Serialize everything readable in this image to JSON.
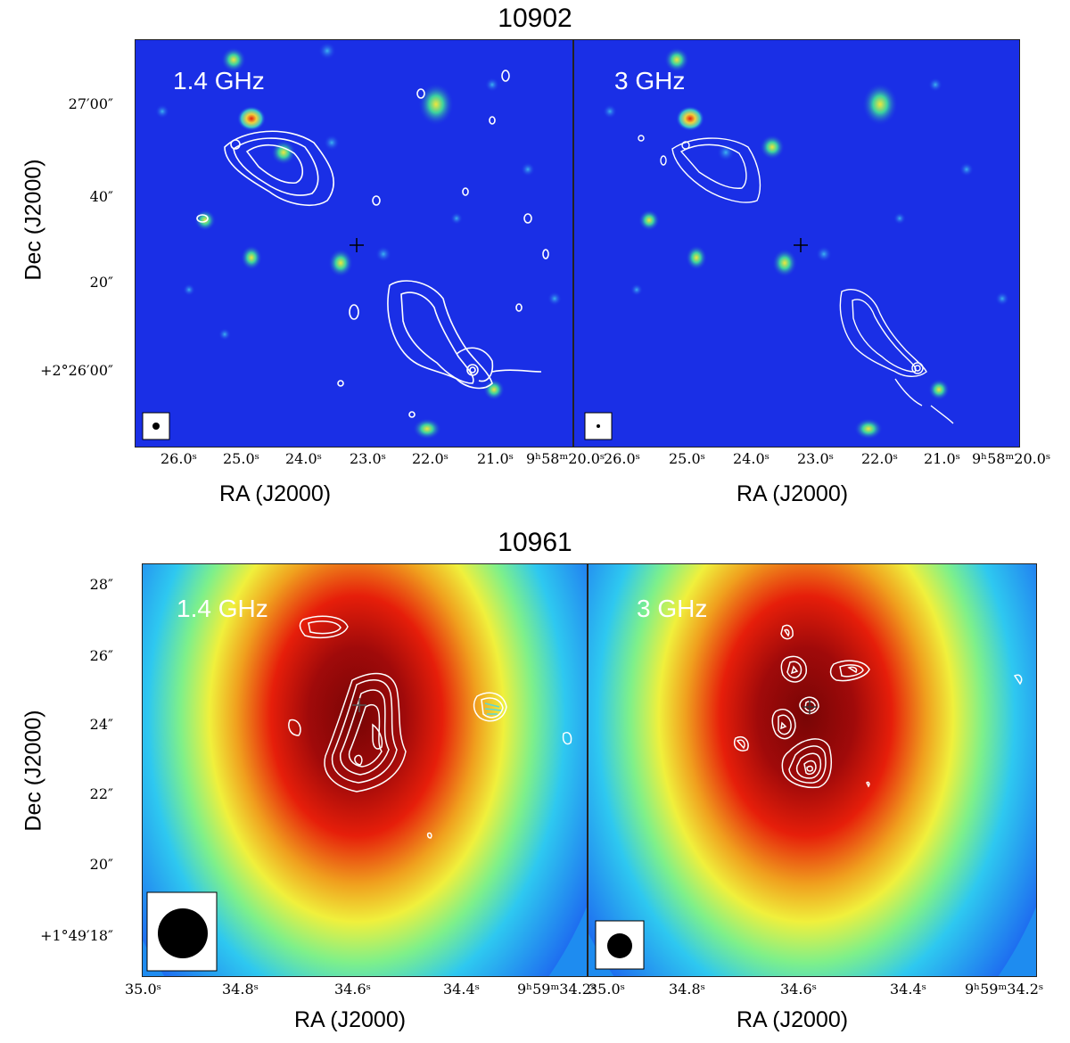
{
  "figure_top": {
    "title": "10902",
    "left_panel": {
      "freq_label": "1.4 GHz"
    },
    "right_panel": {
      "freq_label": "3 GHz"
    },
    "y_axis_label": "Dec (J2000)",
    "x_axis_label_left": "RA (J2000)",
    "x_axis_label_right": "RA (J2000)",
    "y_ticks": [
      "27′00″",
      "40″",
      "20″",
      "+2°26′00″"
    ],
    "x_ticks_left": [
      "26.0ˢ",
      "25.0ˢ",
      "24.0ˢ",
      "23.0ˢ",
      "22.0ˢ",
      "21.0ˢ",
      "9ʰ58ᵐ20.0ˢ"
    ],
    "x_ticks_right": [
      "26.0ˢ",
      "25.0ˢ",
      "24.0ˢ",
      "23.0ˢ",
      "22.0ˢ",
      "21.0ˢ",
      "9ʰ58ᵐ20.0ˢ"
    ]
  },
  "figure_bottom": {
    "title": "10961",
    "left_panel": {
      "freq_label": "1.4 GHz"
    },
    "right_panel": {
      "freq_label": "3 GHz"
    },
    "y_axis_label": "Dec (J2000)",
    "x_axis_label_left": "RA (J2000)",
    "x_axis_label_right": "RA (J2000)",
    "y_ticks": [
      "28″",
      "26″",
      "24″",
      "22″",
      "20″",
      "+1°49′18″"
    ],
    "x_ticks_left": [
      "35.0ˢ",
      "34.8ˢ",
      "34.6ˢ",
      "34.4ˢ",
      "9ʰ59ᵐ34.2ˢ"
    ],
    "x_ticks_right": [
      "35.0ˢ",
      "34.8ˢ",
      "34.6ˢ",
      "34.4ˢ",
      "9ʰ59ᵐ34.2ˢ"
    ]
  },
  "colors": {
    "background_blue": "#1a2fe6",
    "contour": "#ffffff",
    "colormap": [
      "#0a1edc",
      "#1e6ef0",
      "#2ec8f0",
      "#7ef08a",
      "#f0f03c",
      "#f0a01e",
      "#e61e0a",
      "#a00a0a",
      "#780505"
    ]
  }
}
